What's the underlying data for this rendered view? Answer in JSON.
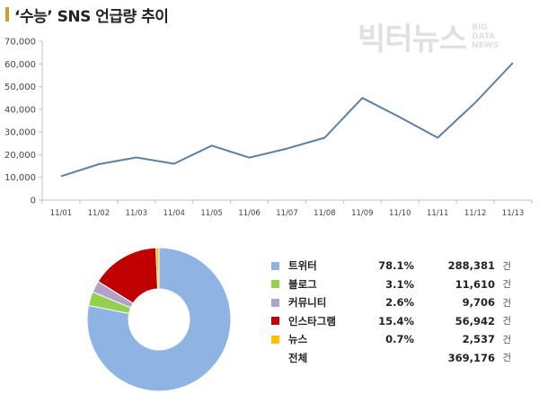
{
  "header": {
    "title": "‘수능’ SNS 언급량 추이"
  },
  "watermark": {
    "main": "빅터뉴스",
    "sub1": "BIG",
    "sub2": "DATA",
    "sub3": "NEWS"
  },
  "chart_data": [
    {
      "type": "line",
      "x": [
        "11/01",
        "11/02",
        "11/03",
        "11/04",
        "11/05",
        "11/06",
        "11/07",
        "11/08",
        "11/09",
        "11/10",
        "11/11",
        "11/12",
        "11/13"
      ],
      "series": [
        {
          "values": [
            10500,
            15800,
            18800,
            16000,
            24000,
            18700,
            22700,
            27500,
            45000,
            36500,
            27500,
            43000,
            60500
          ],
          "color": "#5b80a5"
        }
      ],
      "yticks": [
        "0",
        "10,000",
        "20,000",
        "30,000",
        "40,000",
        "50,000",
        "60,000",
        "70,000"
      ],
      "ylim": [
        0,
        70000
      ],
      "grid": false
    },
    {
      "type": "pie",
      "donut": true,
      "start_angle_deg": 0,
      "slices": [
        {
          "label": "트위터",
          "percent": "78.1%",
          "value": 288381,
          "count": "288,381",
          "color": "#8eb4e3"
        },
        {
          "label": "블로그",
          "percent": "3.1%",
          "value": 11610,
          "count": "11,610",
          "color": "#92d050"
        },
        {
          "label": "커뮤니티",
          "percent": "2.6%",
          "value": 9706,
          "count": "9,706",
          "color": "#b3a2c7"
        },
        {
          "label": "인스타그램",
          "percent": "15.4%",
          "value": 56942,
          "count": "56,942",
          "color": "#c00000"
        },
        {
          "label": "뉴스",
          "percent": "0.7%",
          "value": 2537,
          "count": "2,537",
          "color": "#ffc000"
        }
      ],
      "total": {
        "label": "전체",
        "count": "369,176"
      },
      "unit": "건",
      "legend": "right"
    }
  ]
}
